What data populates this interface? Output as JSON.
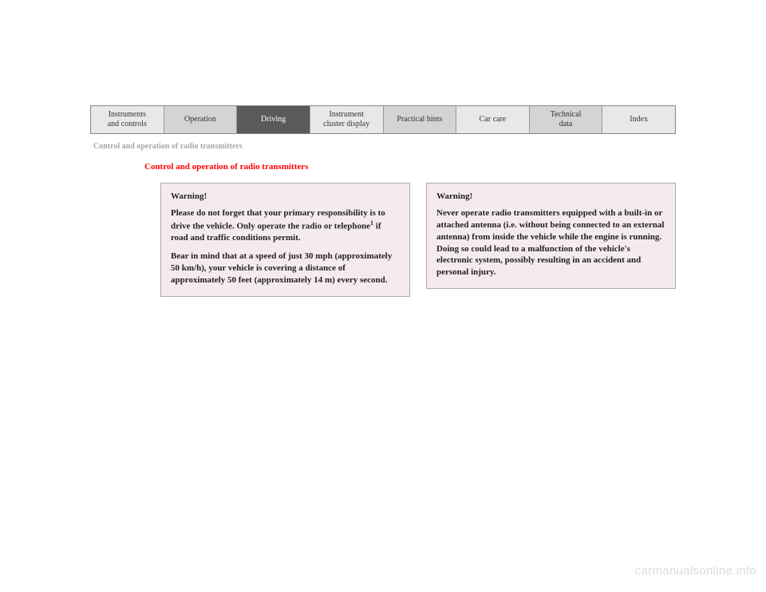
{
  "tabs": [
    {
      "label": "Instruments\nand controls",
      "style": "light"
    },
    {
      "label": "Operation",
      "style": "mid"
    },
    {
      "label": "Driving",
      "style": "dark"
    },
    {
      "label": "Instrument\ncluster display",
      "style": "light"
    },
    {
      "label": "Practical hints",
      "style": "mid"
    },
    {
      "label": "Car care",
      "style": "light"
    },
    {
      "label": "Technical\ndata",
      "style": "mid"
    },
    {
      "label": "Index",
      "style": "light"
    }
  ],
  "breadcrumb": "Control and operation of radio transmitters",
  "heading": "Control and operation of radio transmitters",
  "warning_left": {
    "title": "Warning!",
    "para1_a": "Please do not forget that your primary responsibility is to drive the vehicle. Only operate the radio or telephone",
    "para1_b": " if road and traffic conditions permit.",
    "footnote": "1",
    "para2": "Bear in mind that at a speed of just 30 mph (approximately 50 km/h), your vehicle is covering a distance of approximately 50 feet (approximately 14 m) every second."
  },
  "warning_right": {
    "title": "Warning!",
    "para1": "Never operate radio transmitters equipped with a built-in or attached antenna (i.e. without being connected to an external antenna) from inside the vehicle while the engine is running. Doing so could lead to a malfunction of the vehicle's electronic system, possibly resulting in an accident and personal injury."
  },
  "watermark": "carmanualsonline.info",
  "colors": {
    "tab_light": "#e8e8e8",
    "tab_mid": "#d4d4d4",
    "tab_dark": "#5a5a5a",
    "warning_bg": "#f5ebef",
    "heading_red": "#ff0000",
    "breadcrumb_gray": "#a8a8a8",
    "watermark_gray": "#dcdcdc"
  }
}
